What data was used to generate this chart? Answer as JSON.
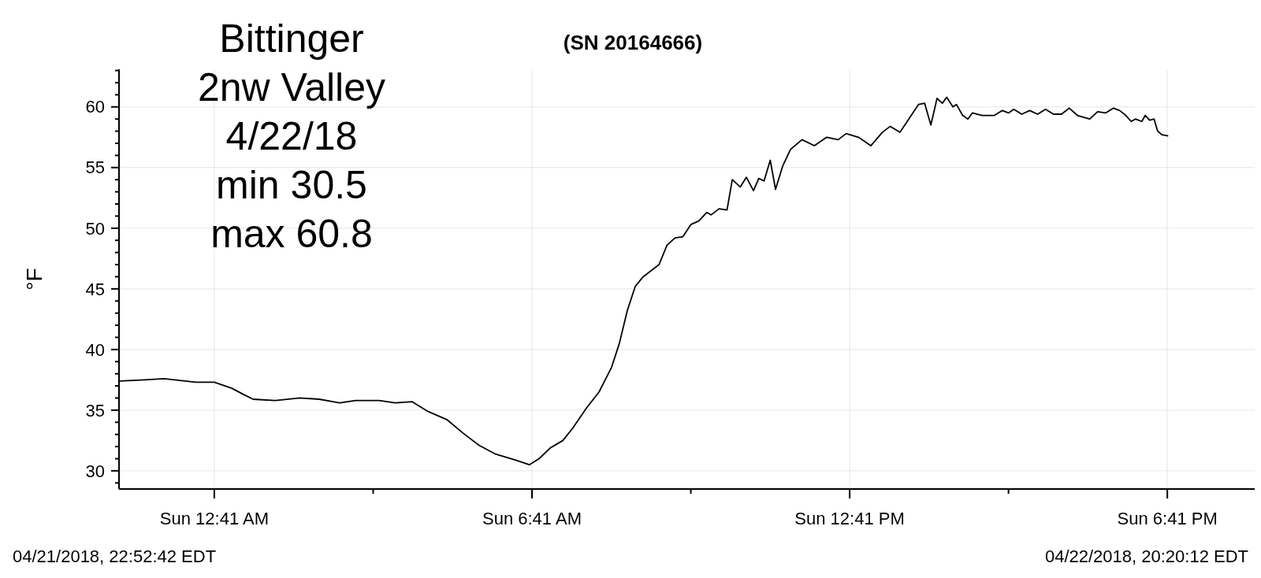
{
  "chart_data": {
    "type": "line",
    "title": "(SN 20164666)",
    "ylabel": "°F",
    "annotations": [
      "Bittinger",
      "2nw Valley",
      "4/22/18",
      "min 30.5",
      "max 60.8",
      "04/21/2018, 22:52:42 EDT",
      "04/22/2018, 20:20:12 EDT"
    ],
    "xlim": [
      "2018-04-21T22:53",
      "2018-04-22T20:20"
    ],
    "ylim": [
      28.5,
      63.1
    ],
    "xticks": [
      {
        "value": "2018-04-22T00:41",
        "label": "Sun 12:41 AM"
      },
      {
        "value": "2018-04-22T03:41",
        "label": null
      },
      {
        "value": "2018-04-22T06:41",
        "label": "Sun 6:41 AM"
      },
      {
        "value": "2018-04-22T09:41",
        "label": null
      },
      {
        "value": "2018-04-22T12:41",
        "label": "Sun 12:41 PM"
      },
      {
        "value": "2018-04-22T15:41",
        "label": null
      },
      {
        "value": "2018-04-22T18:41",
        "label": "Sun 6:41 PM"
      }
    ],
    "yticks": [
      {
        "value": 29,
        "label": null
      },
      30,
      {
        "value": 31,
        "label": null
      },
      {
        "value": 32,
        "label": null
      },
      {
        "value": 33,
        "label": null
      },
      {
        "value": 34,
        "label": null
      },
      35,
      {
        "value": 36,
        "label": null
      },
      {
        "value": 37,
        "label": null
      },
      {
        "value": 38,
        "label": null
      },
      {
        "value": 39,
        "label": null
      },
      40,
      {
        "value": 41,
        "label": null
      },
      {
        "value": 42,
        "label": null
      },
      {
        "value": 43,
        "label": null
      },
      {
        "value": 44,
        "label": null
      },
      45,
      {
        "value": 46,
        "label": null
      },
      {
        "value": 47,
        "label": null
      },
      {
        "value": 48,
        "label": null
      },
      {
        "value": 49,
        "label": null
      },
      50,
      {
        "value": 51,
        "label": null
      },
      {
        "value": 52,
        "label": null
      },
      {
        "value": 53,
        "label": null
      },
      {
        "value": 54,
        "label": null
      },
      55,
      {
        "value": 56,
        "label": null
      },
      {
        "value": 57,
        "label": null
      },
      {
        "value": 58,
        "label": null
      },
      {
        "value": 59,
        "label": null
      },
      60,
      {
        "value": 61,
        "label": null
      },
      {
        "value": 62,
        "label": null
      },
      {
        "value": 63,
        "label": null
      }
    ],
    "grid": true,
    "marker": "none",
    "line_style": "solid",
    "series": [
      {
        "color": "#000000",
        "x": [
          "2018-04-21T22:54",
          "2018-04-21T23:22",
          "2018-04-21T23:44",
          "2018-04-22T00:20",
          "2018-04-22T00:41",
          "2018-04-22T01:01",
          "2018-04-22T01:14",
          "2018-04-22T01:25",
          "2018-04-22T01:50",
          "2018-04-22T02:18",
          "2018-04-22T02:40",
          "2018-04-22T03:03",
          "2018-04-22T03:21",
          "2018-04-22T03:48",
          "2018-04-22T04:06",
          "2018-04-22T04:25",
          "2018-04-22T04:43",
          "2018-04-22T05:05",
          "2018-04-22T05:23",
          "2018-04-22T05:41",
          "2018-04-22T05:59",
          "2018-04-22T06:22",
          "2018-04-22T06:38",
          "2018-04-22T06:49",
          "2018-04-22T07:02",
          "2018-04-22T07:16",
          "2018-04-22T07:27",
          "2018-04-22T07:43",
          "2018-04-22T07:57",
          "2018-04-22T08:11",
          "2018-04-22T08:20",
          "2018-04-22T08:29",
          "2018-04-22T08:38",
          "2018-04-22T08:47",
          "2018-04-22T08:56",
          "2018-04-22T09:05",
          "2018-04-22T09:14",
          "2018-04-22T09:23",
          "2018-04-22T09:32",
          "2018-04-22T09:41",
          "2018-04-22T09:50",
          "2018-04-22T09:59",
          "2018-04-22T10:04",
          "2018-04-22T10:13",
          "2018-04-22T10:22",
          "2018-04-22T10:28",
          "2018-04-22T10:37",
          "2018-04-22T10:44",
          "2018-04-22T10:52",
          "2018-04-22T10:58",
          "2018-04-22T11:04",
          "2018-04-22T11:11",
          "2018-04-22T11:17",
          "2018-04-22T11:25",
          "2018-04-22T11:34",
          "2018-04-22T11:47",
          "2018-04-22T12:01",
          "2018-04-22T12:15",
          "2018-04-22T12:28",
          "2018-04-22T12:37",
          "2018-04-22T12:51",
          "2018-04-22T13:05",
          "2018-04-22T13:18",
          "2018-04-22T13:27",
          "2018-04-22T13:38",
          "2018-04-22T13:59",
          "2018-04-22T14:06",
          "2018-04-22T14:13",
          "2018-04-22T14:20",
          "2018-04-22T14:26",
          "2018-04-22T14:31",
          "2018-04-22T14:38",
          "2018-04-22T14:42",
          "2018-04-22T14:49",
          "2018-04-22T14:55",
          "2018-04-22T15:00",
          "2018-04-22T15:11",
          "2018-04-22T15:25",
          "2018-04-22T15:34",
          "2018-04-22T15:41",
          "2018-04-22T15:47",
          "2018-04-22T15:56",
          "2018-04-22T16:05",
          "2018-04-22T16:14",
          "2018-04-22T16:23",
          "2018-04-22T16:32",
          "2018-04-22T16:41",
          "2018-04-22T16:50",
          "2018-04-22T16:59",
          "2018-04-22T17:13",
          "2018-04-22T17:22",
          "2018-04-22T17:31",
          "2018-04-22T17:40",
          "2018-04-22T17:47",
          "2018-04-22T17:54",
          "2018-04-22T18:00",
          "2018-04-22T18:05",
          "2018-04-22T18:12",
          "2018-04-22T18:16",
          "2018-04-22T18:21",
          "2018-04-22T18:26",
          "2018-04-22T18:30",
          "2018-04-22T18:35",
          "2018-04-22T18:42"
        ],
        "values": [
          37.4,
          37.5,
          37.6,
          37.3,
          37.3,
          36.8,
          36.3,
          35.9,
          35.8,
          36.0,
          35.9,
          35.6,
          35.8,
          35.8,
          35.6,
          35.7,
          34.9,
          34.2,
          33.1,
          32.1,
          31.4,
          30.9,
          30.5,
          31.0,
          31.9,
          32.5,
          33.5,
          35.2,
          36.5,
          38.5,
          40.5,
          43.2,
          45.2,
          46.0,
          46.5,
          47.0,
          48.6,
          49.2,
          49.3,
          50.3,
          50.6,
          51.3,
          51.1,
          51.6,
          51.5,
          54.0,
          53.4,
          54.2,
          53.1,
          54.1,
          53.9,
          55.6,
          53.2,
          55.1,
          56.5,
          57.3,
          56.8,
          57.5,
          57.3,
          57.8,
          57.5,
          56.8,
          57.9,
          58.4,
          57.9,
          60.2,
          60.3,
          58.5,
          60.7,
          60.3,
          60.8,
          60.0,
          60.2,
          59.3,
          59.0,
          59.5,
          59.3,
          59.3,
          59.7,
          59.5,
          59.8,
          59.4,
          59.7,
          59.4,
          59.8,
          59.4,
          59.4,
          59.9,
          59.3,
          59.0,
          59.6,
          59.5,
          59.9,
          59.7,
          59.3,
          58.8,
          59.0,
          58.8,
          59.3,
          58.9,
          59.0,
          58.0,
          57.7,
          57.6
        ]
      }
    ]
  }
}
